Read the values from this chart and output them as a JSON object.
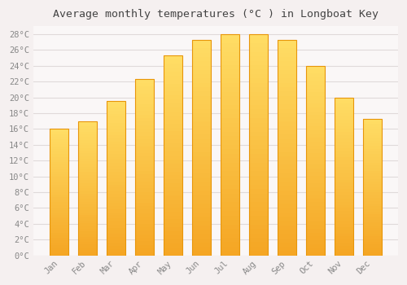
{
  "title": "Average monthly temperatures (°C ) in Longboat Key",
  "months": [
    "Jan",
    "Feb",
    "Mar",
    "Apr",
    "May",
    "Jun",
    "Jul",
    "Aug",
    "Sep",
    "Oct",
    "Nov",
    "Dec"
  ],
  "values": [
    16,
    17,
    19.5,
    22.3,
    25.3,
    27.3,
    28,
    28,
    27.3,
    24,
    20,
    17.3
  ],
  "bar_color_bottom": "#F5A623",
  "bar_color_top": "#FFD966",
  "bar_edge_color": "#E8960A",
  "background_color": "#F5F0F0",
  "plot_bg_color": "#FAF7F7",
  "grid_color": "#E0DADA",
  "title_color": "#444444",
  "label_color": "#888888",
  "ylim_min": 0,
  "ylim_max": 29,
  "ytick_step": 2,
  "ytick_max": 28,
  "title_fontsize": 9.5,
  "tick_fontsize": 7.5
}
